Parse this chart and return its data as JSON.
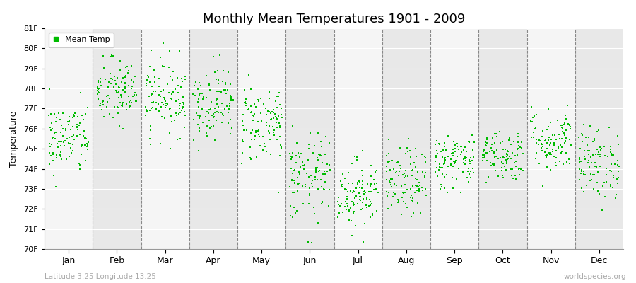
{
  "title": "Monthly Mean Temperatures 1901 - 2009",
  "ylabel": "Temperature",
  "xlabel_bottom_left": "Latitude 3.25 Longitude 13.25",
  "xlabel_bottom_right": "worldspecies.org",
  "legend_label": "Mean Temp",
  "ylim": [
    70,
    81
  ],
  "yticks": [
    70,
    71,
    72,
    73,
    74,
    75,
    76,
    77,
    78,
    79,
    80,
    81
  ],
  "ytick_labels": [
    "70F",
    "71F",
    "72F",
    "73F",
    "74F",
    "75F",
    "76F",
    "77F",
    "78F",
    "79F",
    "80F",
    "81F"
  ],
  "months": [
    "Jan",
    "Feb",
    "Mar",
    "Apr",
    "May",
    "Jun",
    "Jul",
    "Aug",
    "Sep",
    "Oct",
    "Nov",
    "Dec"
  ],
  "month_means": [
    75.5,
    77.8,
    77.6,
    77.3,
    76.3,
    73.5,
    72.8,
    73.3,
    74.4,
    74.7,
    75.4,
    74.3
  ],
  "month_stds": [
    0.9,
    0.85,
    0.95,
    0.9,
    1.0,
    1.1,
    0.85,
    0.85,
    0.7,
    0.65,
    0.8,
    0.9
  ],
  "n_years": 109,
  "dot_color": "#00bb00",
  "dot_size": 3,
  "bg_color_light": "#f5f5f5",
  "bg_color_dark": "#e8e8e8",
  "dashed_line_color": "#888888",
  "seed": 42,
  "fig_width": 9.0,
  "fig_height": 4.0,
  "fig_dpi": 100
}
